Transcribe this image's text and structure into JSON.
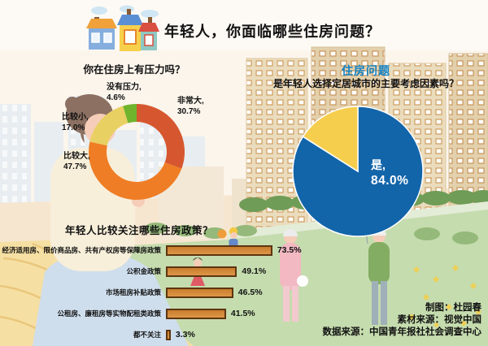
{
  "page": {
    "title": "年轻人，你面临哪些住房问题？"
  },
  "icons": {
    "houses-logo": "three-small-houses-with-chimney-smoke"
  },
  "colors": {
    "background_cream": "#fbf5ec",
    "accent_blue_heading": "#1180c2",
    "bar_fill": "#d58a3c",
    "bar_border": "#5e3510",
    "grass_green": "#c5dcae",
    "building_tan": "#eadcbd"
  },
  "chart_data": [
    {
      "type": "pie",
      "variant": "donut",
      "title": "你在住房上有压力吗？",
      "slices": [
        {
          "label": "非常大",
          "value": 30.7,
          "color": "#d6572f"
        },
        {
          "label": "比较大",
          "value": 47.7,
          "color": "#ef7d25"
        },
        {
          "label": "比较小",
          "value": 17.0,
          "color": "#e8d063"
        },
        {
          "label": "没有压力",
          "value": 4.6,
          "color": "#6fb42c"
        }
      ],
      "start_angle_deg": 0,
      "direction": "clockwise",
      "legend_position": "around-labels"
    },
    {
      "type": "pie",
      "title": "住房问题",
      "subtitle": "是年轻人选择定居城市的主要考虑因素吗？",
      "slices": [
        {
          "label": "是",
          "value": 84.0,
          "color": "#1365aa"
        },
        {
          "label": "",
          "value": 16.0,
          "color": "#f6ce4d"
        }
      ],
      "start_angle_deg": 0,
      "direction": "clockwise",
      "label_inside": "是，84.0%"
    },
    {
      "type": "bar",
      "orientation": "horizontal",
      "title": "年轻人比较关注哪些住房政策？",
      "categories": [
        "经济适用房、限价商品房、共有产权房等保障房政策",
        "公积金政策",
        "市场租房补贴政策",
        "公租房、廉租房等实物配租类政策",
        "都不关注"
      ],
      "values": [
        73.5,
        49.1,
        46.5,
        41.5,
        3.3
      ],
      "unit": "%",
      "xlim": [
        0,
        100
      ],
      "grid": false
    }
  ],
  "footer": {
    "lines": [
      "制图：杜园春",
      "素材来源：视觉中国",
      "数据来源：中国青年报社社会调查中心"
    ]
  }
}
